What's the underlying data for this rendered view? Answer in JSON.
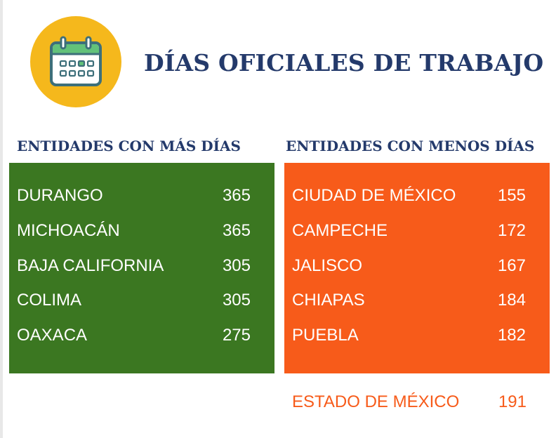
{
  "title": "DÍAS OFICIALES DE TRABAJO",
  "icon": "calendar-icon",
  "colors": {
    "title": "#243a6b",
    "badge": "#f5b81c",
    "more_days_panel": "#3b7721",
    "fewer_days_panel": "#f75b1a"
  },
  "chart_data": {
    "type": "table",
    "tables": [
      {
        "title": "ENTIDADES CON MÁS DÍAS",
        "rows": [
          {
            "name": "DURANGO",
            "value": 365
          },
          {
            "name": "MICHOACÁN",
            "value": 365
          },
          {
            "name": "BAJA CALIFORNIA",
            "value": 305
          },
          {
            "name": "COLIMA",
            "value": 305
          },
          {
            "name": "OAXACA",
            "value": 275
          }
        ]
      },
      {
        "title": "ENTIDADES CON MENOS DÍAS",
        "rows": [
          {
            "name": "CIUDAD DE MÉXICO",
            "value": 155
          },
          {
            "name": "CAMPECHE",
            "value": 172
          },
          {
            "name": "JALISCO",
            "value": 167
          },
          {
            "name": "CHIAPAS",
            "value": 184
          },
          {
            "name": "PUEBLA",
            "value": 182
          }
        ]
      }
    ],
    "footer": {
      "name": "ESTADO DE MÉXICO",
      "value": 191
    }
  }
}
